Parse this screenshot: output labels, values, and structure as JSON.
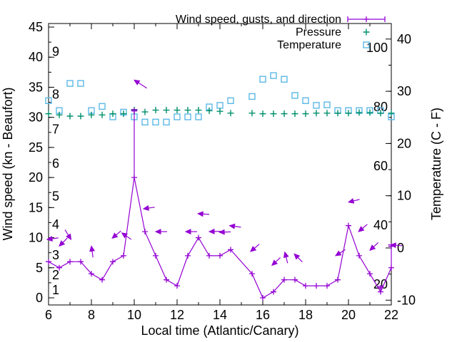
{
  "chart_data": {
    "type": "line",
    "xlabel": "Local time (Atlantic/Canary)",
    "ylabel_left": "Wind speed (kn - Beaufort)",
    "ylabel_right": "Temperature (C - F)",
    "legend": [
      {
        "label": "Wind speed, gusts, and direction",
        "marker": "errorbar",
        "color": "#9400d3"
      },
      {
        "label": "Pressure",
        "marker": "plus",
        "color": "#008f6c"
      },
      {
        "label": "Temperature",
        "marker": "square-open",
        "color": "#5cb8e6"
      }
    ],
    "x_range": [
      6,
      22
    ],
    "x_major_ticks": [
      6,
      8,
      10,
      12,
      14,
      16,
      18,
      20,
      22
    ],
    "x_minor_step": 1,
    "y_left_ticks_kn": [
      0,
      5,
      10,
      15,
      20,
      25,
      30,
      35,
      40,
      45
    ],
    "y_left_minor_step": 2.5,
    "y_right_ticks_c": [
      -10,
      0,
      10,
      20,
      30,
      40
    ],
    "y_right_minor_step": 5,
    "beaufort_scale_labels": [
      {
        "label": "1",
        "kn": 1.3
      },
      {
        "label": "2",
        "kn": 3.8
      },
      {
        "label": "3",
        "kn": 7.1
      },
      {
        "label": "4",
        "kn": 12.2
      },
      {
        "label": "5",
        "kn": 16.9
      },
      {
        "label": "6",
        "kn": 22.3
      },
      {
        "label": "7",
        "kn": 28.0
      },
      {
        "label": "8",
        "kn": 33.8
      },
      {
        "label": "9",
        "kn": 40.9
      }
    ],
    "fahrenheit_scale_labels": [
      {
        "label": "20",
        "f": 20
      },
      {
        "label": "40",
        "f": 40
      },
      {
        "label": "60",
        "f": 60
      },
      {
        "label": "80",
        "f": 80
      },
      {
        "label": "100",
        "f": 100
      }
    ],
    "wind": {
      "x": [
        6,
        6.5,
        7,
        7.5,
        8,
        8.5,
        9,
        9.5,
        10,
        10.5,
        11,
        11.5,
        12,
        12.5,
        13,
        13.5,
        14,
        14.5,
        15.5,
        16,
        16.5,
        17,
        17.5,
        18,
        18.5,
        19,
        19.5,
        20,
        20.5,
        21,
        21.5,
        22
      ],
      "speed_kn": [
        6,
        5,
        6,
        6,
        4,
        3,
        6,
        7,
        20,
        11,
        7,
        3,
        2,
        7,
        10,
        7,
        7,
        8,
        4,
        0,
        1,
        3,
        3,
        2,
        2,
        2,
        3,
        12,
        7,
        4,
        1,
        5
      ],
      "note": "no sample at 15.0 (gap); line connects 14.5 to 15.5 directly"
    },
    "gusts": [
      {
        "x": 10,
        "from_kn": 20,
        "to_kn": 31.3
      },
      {
        "x": 21.5,
        "from_kn": 1,
        "to_kn": 1.9
      },
      {
        "x": 22,
        "from_kn": 5,
        "to_kn": 8.8
      }
    ],
    "direction_arrows": [
      {
        "x": 5.93,
        "kn": 9.7,
        "angle_screen_deg": 172,
        "size": 16
      },
      {
        "x": 6.5,
        "kn": 8.6,
        "angle_screen_deg": 135,
        "size": 16
      },
      {
        "x": 7.05,
        "kn": 9.7,
        "angle_screen_deg": 58,
        "size": 16
      },
      {
        "x": 8.0,
        "kn": 8.6,
        "angle_screen_deg": 262,
        "size": 16
      },
      {
        "x": 8.97,
        "kn": 9.9,
        "angle_screen_deg": 140,
        "size": 16
      },
      {
        "x": 9.42,
        "kn": 10.8,
        "angle_screen_deg": 215,
        "size": 16
      },
      {
        "x": 10.0,
        "kn": 36.2,
        "angle_screen_deg": 213,
        "size": 21
      },
      {
        "x": 10.43,
        "kn": 14.8,
        "angle_screen_deg": 172,
        "size": 16
      },
      {
        "x": 11.0,
        "kn": 11.0,
        "angle_screen_deg": 180,
        "size": 16
      },
      {
        "x": 12.4,
        "kn": 11.0,
        "angle_screen_deg": 180,
        "size": 16
      },
      {
        "x": 12.97,
        "kn": 14.0,
        "angle_screen_deg": 184,
        "size": 16
      },
      {
        "x": 13.5,
        "kn": 11.0,
        "angle_screen_deg": 178,
        "size": 16
      },
      {
        "x": 13.97,
        "kn": 10.9,
        "angle_screen_deg": 178,
        "size": 16
      },
      {
        "x": 14.45,
        "kn": 12.0,
        "angle_screen_deg": 188,
        "size": 16
      },
      {
        "x": 15.43,
        "kn": 7.7,
        "angle_screen_deg": 140,
        "size": 16
      },
      {
        "x": 16.43,
        "kn": 5.4,
        "angle_screen_deg": 137,
        "size": 16
      },
      {
        "x": 17.03,
        "kn": 7.6,
        "angle_screen_deg": 256,
        "size": 16
      },
      {
        "x": 17.47,
        "kn": 7.3,
        "angle_screen_deg": 225,
        "size": 16
      },
      {
        "x": 19.4,
        "kn": 7.0,
        "angle_screen_deg": 148,
        "size": 16
      },
      {
        "x": 20.0,
        "kn": 15.9,
        "angle_screen_deg": 166,
        "size": 16
      },
      {
        "x": 20.47,
        "kn": 11.0,
        "angle_screen_deg": 140,
        "size": 16
      },
      {
        "x": 21.0,
        "kn": 7.9,
        "angle_screen_deg": 137,
        "size": 16
      },
      {
        "x": 21.97,
        "kn": 8.8,
        "angle_screen_deg": 184,
        "size": 16
      }
    ],
    "pressure": {
      "x": [
        6,
        6.5,
        7,
        7.5,
        8,
        8.5,
        9,
        9.5,
        10,
        10.5,
        11,
        11.5,
        12,
        12.5,
        13,
        13.5,
        14,
        14.5,
        15.5,
        16,
        16.5,
        17,
        17.5,
        18,
        18.5,
        19,
        19.5,
        20,
        20.5,
        21,
        21.5,
        22
      ],
      "value_left_scale": [
        30.6,
        30.4,
        30.2,
        30.2,
        30.4,
        30.4,
        30.6,
        30.6,
        31.2,
        30.9,
        31.2,
        31.2,
        31.2,
        31.2,
        31.2,
        31.1,
        31.0,
        30.7,
        30.7,
        30.6,
        30.6,
        30.6,
        30.6,
        30.6,
        30.7,
        30.7,
        30.7,
        30.7,
        30.8,
        30.8,
        30.7,
        30.7
      ]
    },
    "temperature": {
      "x": [
        6,
        6.5,
        7,
        7.5,
        8,
        8.5,
        9,
        9.5,
        10,
        10.5,
        11,
        11.5,
        12,
        12.5,
        13,
        13.5,
        14,
        14.5,
        15.5,
        16,
        16.5,
        17,
        17.5,
        18,
        18.5,
        19,
        19.5,
        20,
        20.5,
        21,
        21.5,
        22
      ],
      "c": [
        28.2,
        26.3,
        31.5,
        31.5,
        26.3,
        27.1,
        25.1,
        26.0,
        25.1,
        24.1,
        24.1,
        24.1,
        25.1,
        25.1,
        25.1,
        27.0,
        27.3,
        28.2,
        29.0,
        32.3,
        33.0,
        32.3,
        29.2,
        28.2,
        27.3,
        27.4,
        26.3,
        26.3,
        26.3,
        26.3,
        26.3,
        25.1
      ]
    },
    "colors": {
      "wind": "#9400d3",
      "pressure": "#008f6c",
      "temperature": "#5cb8e6",
      "axis": "#000000",
      "background": "#ffffff"
    }
  }
}
